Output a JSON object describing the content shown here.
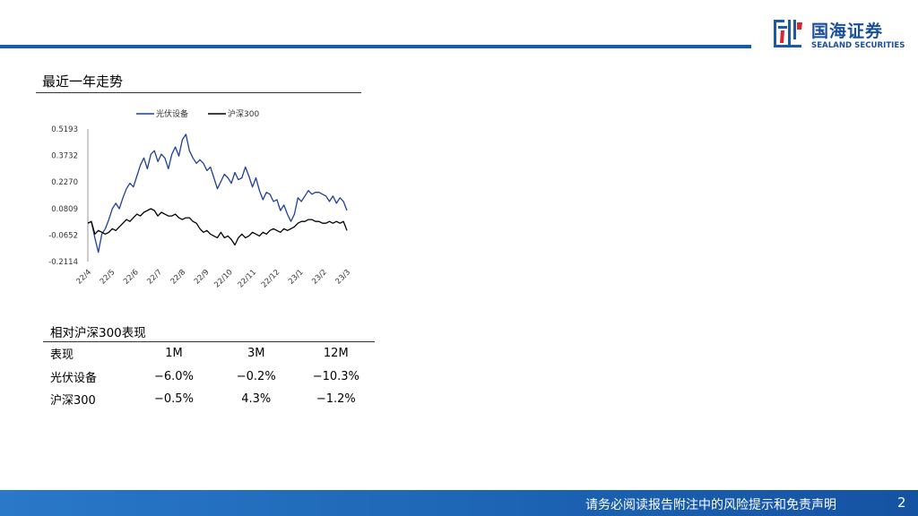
{
  "brand": {
    "name_cn": "国海证券",
    "name_en": "SEALAND SECURITIES",
    "primary_color": "#1a5aa8"
  },
  "section": {
    "title": "最近一年走势"
  },
  "chart_data": {
    "type": "line",
    "title": "",
    "xlabel": "",
    "ylabel": "",
    "legend_position": "top",
    "grid": false,
    "ylim": [
      -0.2114,
      0.5193
    ],
    "yticks": [
      "0.5193",
      "0.3732",
      "0.2270",
      "0.0809",
      "-0.0652",
      "-0.2114"
    ],
    "xticks": [
      "22/4",
      "22/5",
      "22/6",
      "22/7",
      "22/8",
      "22/9",
      "22/10",
      "22/11",
      "22/12",
      "23/1",
      "23/2",
      "23/3"
    ],
    "series": [
      {
        "name": "光伏设备",
        "color": "#1f3f99",
        "values": [
          0.0,
          0.01,
          -0.08,
          -0.16,
          -0.06,
          -0.03,
          0.02,
          0.08,
          0.11,
          0.08,
          0.14,
          0.19,
          0.22,
          0.2,
          0.26,
          0.32,
          0.36,
          0.3,
          0.38,
          0.4,
          0.34,
          0.38,
          0.36,
          0.3,
          0.38,
          0.42,
          0.37,
          0.46,
          0.49,
          0.4,
          0.36,
          0.33,
          0.35,
          0.33,
          0.29,
          0.31,
          0.25,
          0.19,
          0.23,
          0.27,
          0.25,
          0.22,
          0.28,
          0.24,
          0.25,
          0.31,
          0.26,
          0.2,
          0.25,
          0.18,
          0.13,
          0.17,
          0.16,
          0.12,
          0.13,
          0.07,
          0.1,
          0.05,
          0.01,
          0.05,
          0.14,
          0.12,
          0.15,
          0.18,
          0.16,
          0.17,
          0.17,
          0.16,
          0.15,
          0.12,
          0.15,
          0.11,
          0.14,
          0.12,
          0.07
        ]
      },
      {
        "name": "沪深300",
        "color": "#000000",
        "values": [
          0.0,
          0.01,
          -0.06,
          -0.04,
          -0.05,
          -0.06,
          -0.05,
          -0.03,
          -0.04,
          -0.02,
          0.0,
          0.02,
          0.01,
          0.03,
          0.05,
          0.04,
          0.06,
          0.07,
          0.08,
          0.07,
          0.04,
          0.06,
          0.05,
          0.04,
          0.04,
          0.05,
          0.03,
          0.02,
          0.03,
          0.03,
          0.01,
          0.0,
          -0.03,
          -0.05,
          -0.04,
          -0.06,
          -0.07,
          -0.08,
          -0.05,
          -0.08,
          -0.07,
          -0.09,
          -0.12,
          -0.08,
          -0.06,
          -0.08,
          -0.07,
          -0.05,
          -0.06,
          -0.07,
          -0.05,
          -0.06,
          -0.04,
          -0.03,
          -0.04,
          -0.05,
          -0.03,
          -0.04,
          -0.03,
          -0.02,
          0.0,
          0.01,
          0.01,
          0.02,
          0.02,
          0.01,
          0.01,
          0.0,
          0.0,
          0.01,
          0.0,
          0.01,
          0.0,
          0.01,
          -0.04
        ]
      }
    ]
  },
  "table": {
    "title": "相对沪深300表现",
    "headers": [
      "表现",
      "1M",
      "3M",
      "12M"
    ],
    "rows": [
      [
        "光伏设备",
        "−6.0%",
        "−0.2%",
        "−10.3%"
      ],
      [
        "沪深300",
        "−0.5%",
        "4.3%",
        "−1.2%"
      ]
    ]
  },
  "footer": {
    "disclaimer": "请务必阅读报告附注中的风险提示和免责声明",
    "page_number": "2"
  }
}
